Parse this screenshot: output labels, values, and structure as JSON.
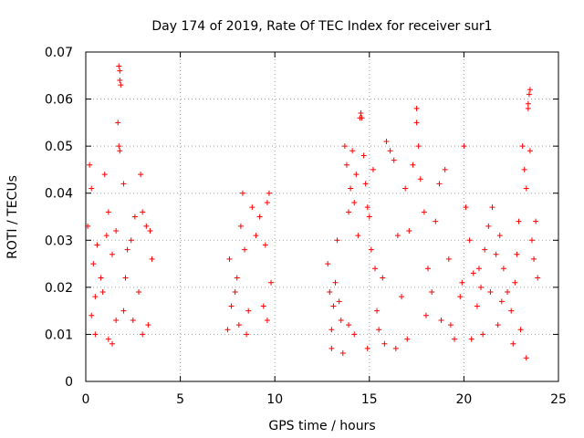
{
  "chart_data": {
    "type": "scatter",
    "title": "Day 174 of 2019, Rate Of TEC Index for receiver sur1",
    "xlabel": "GPS time / hours",
    "ylabel": "ROTI / TECUs",
    "xlim": [
      0,
      25
    ],
    "ylim": [
      0,
      0.07
    ],
    "x_ticks": [
      "0",
      "5",
      "10",
      "15",
      "20",
      "25"
    ],
    "y_ticks": [
      "0",
      "0.01",
      "0.02",
      "0.03",
      "0.04",
      "0.05",
      "0.06",
      "0.07"
    ],
    "grid": true,
    "marker": "+",
    "color": "#ff0000",
    "series": [
      {
        "name": "sur1",
        "points": [
          [
            0.1,
            0.033
          ],
          [
            0.2,
            0.046
          ],
          [
            0.3,
            0.041
          ],
          [
            0.4,
            0.025
          ],
          [
            0.5,
            0.018
          ],
          [
            0.6,
            0.029
          ],
          [
            0.8,
            0.022
          ],
          [
            1.0,
            0.044
          ],
          [
            1.1,
            0.031
          ],
          [
            1.2,
            0.036
          ],
          [
            1.4,
            0.027
          ],
          [
            1.6,
            0.032
          ],
          [
            1.75,
            0.067
          ],
          [
            1.8,
            0.066
          ],
          [
            1.8,
            0.064
          ],
          [
            1.85,
            0.063
          ],
          [
            1.7,
            0.055
          ],
          [
            1.75,
            0.05
          ],
          [
            1.8,
            0.049
          ],
          [
            2.0,
            0.042
          ],
          [
            2.2,
            0.028
          ],
          [
            2.4,
            0.03
          ],
          [
            2.6,
            0.035
          ],
          [
            2.9,
            0.044
          ],
          [
            3.0,
            0.036
          ],
          [
            3.2,
            0.033
          ],
          [
            3.4,
            0.032
          ],
          [
            3.5,
            0.026
          ],
          [
            0.3,
            0.014
          ],
          [
            0.5,
            0.01
          ],
          [
            1.2,
            0.009
          ],
          [
            1.4,
            0.008
          ],
          [
            1.6,
            0.013
          ],
          [
            2.0,
            0.015
          ],
          [
            2.5,
            0.013
          ],
          [
            3.0,
            0.01
          ],
          [
            3.3,
            0.012
          ],
          [
            2.8,
            0.019
          ],
          [
            0.9,
            0.019
          ],
          [
            2.1,
            0.022
          ],
          [
            7.5,
            0.011
          ],
          [
            7.7,
            0.016
          ],
          [
            7.9,
            0.019
          ],
          [
            8.0,
            0.022
          ],
          [
            8.2,
            0.033
          ],
          [
            8.3,
            0.04
          ],
          [
            8.4,
            0.028
          ],
          [
            8.6,
            0.015
          ],
          [
            7.6,
            0.026
          ],
          [
            8.1,
            0.012
          ],
          [
            8.5,
            0.01
          ],
          [
            8.8,
            0.037
          ],
          [
            9.0,
            0.031
          ],
          [
            9.2,
            0.035
          ],
          [
            9.5,
            0.029
          ],
          [
            9.6,
            0.038
          ],
          [
            9.7,
            0.04
          ],
          [
            9.8,
            0.021
          ],
          [
            9.6,
            0.013
          ],
          [
            9.4,
            0.016
          ],
          [
            12.8,
            0.025
          ],
          [
            12.9,
            0.019
          ],
          [
            13.0,
            0.011
          ],
          [
            13.0,
            0.007
          ],
          [
            13.1,
            0.016
          ],
          [
            13.2,
            0.021
          ],
          [
            13.3,
            0.03
          ],
          [
            13.4,
            0.017
          ],
          [
            13.5,
            0.013
          ],
          [
            13.6,
            0.006
          ],
          [
            13.7,
            0.05
          ],
          [
            13.8,
            0.046
          ],
          [
            13.9,
            0.036
          ],
          [
            14.0,
            0.041
          ],
          [
            14.1,
            0.049
          ],
          [
            14.2,
            0.038
          ],
          [
            14.3,
            0.044
          ],
          [
            14.4,
            0.031
          ],
          [
            14.5,
            0.056
          ],
          [
            14.55,
            0.057
          ],
          [
            14.6,
            0.056
          ],
          [
            14.7,
            0.048
          ],
          [
            14.8,
            0.042
          ],
          [
            14.9,
            0.037
          ],
          [
            15.0,
            0.035
          ],
          [
            15.1,
            0.028
          ],
          [
            15.2,
            0.045
          ],
          [
            15.3,
            0.024
          ],
          [
            15.4,
            0.015
          ],
          [
            15.5,
            0.011
          ],
          [
            15.7,
            0.022
          ],
          [
            15.9,
            0.051
          ],
          [
            16.1,
            0.049
          ],
          [
            16.3,
            0.047
          ],
          [
            16.5,
            0.031
          ],
          [
            16.7,
            0.018
          ],
          [
            16.9,
            0.041
          ],
          [
            17.1,
            0.032
          ],
          [
            17.3,
            0.046
          ],
          [
            17.5,
            0.058
          ],
          [
            17.5,
            0.055
          ],
          [
            17.6,
            0.05
          ],
          [
            17.7,
            0.043
          ],
          [
            17.9,
            0.036
          ],
          [
            18.1,
            0.024
          ],
          [
            18.3,
            0.019
          ],
          [
            18.5,
            0.034
          ],
          [
            18.7,
            0.042
          ],
          [
            19.0,
            0.045
          ],
          [
            19.2,
            0.026
          ],
          [
            19.3,
            0.012
          ],
          [
            19.5,
            0.009
          ],
          [
            17.0,
            0.009
          ],
          [
            16.4,
            0.007
          ],
          [
            15.8,
            0.008
          ],
          [
            14.9,
            0.007
          ],
          [
            14.2,
            0.01
          ],
          [
            13.9,
            0.012
          ],
          [
            18.0,
            0.014
          ],
          [
            18.8,
            0.013
          ],
          [
            20.0,
            0.05
          ],
          [
            20.1,
            0.037
          ],
          [
            20.3,
            0.03
          ],
          [
            20.5,
            0.023
          ],
          [
            20.7,
            0.016
          ],
          [
            20.9,
            0.02
          ],
          [
            21.1,
            0.028
          ],
          [
            21.3,
            0.033
          ],
          [
            21.5,
            0.037
          ],
          [
            21.7,
            0.027
          ],
          [
            21.9,
            0.031
          ],
          [
            22.1,
            0.024
          ],
          [
            22.3,
            0.019
          ],
          [
            22.5,
            0.015
          ],
          [
            22.7,
            0.021
          ],
          [
            22.9,
            0.034
          ],
          [
            23.1,
            0.05
          ],
          [
            23.2,
            0.045
          ],
          [
            23.3,
            0.041
          ],
          [
            23.4,
            0.059
          ],
          [
            23.45,
            0.061
          ],
          [
            23.5,
            0.062
          ],
          [
            23.4,
            0.058
          ],
          [
            23.5,
            0.049
          ],
          [
            23.6,
            0.03
          ],
          [
            23.7,
            0.026
          ],
          [
            23.8,
            0.034
          ],
          [
            23.9,
            0.022
          ],
          [
            23.3,
            0.005
          ],
          [
            21.0,
            0.01
          ],
          [
            21.8,
            0.012
          ],
          [
            22.6,
            0.008
          ],
          [
            23.0,
            0.011
          ],
          [
            20.4,
            0.009
          ],
          [
            19.8,
            0.018
          ],
          [
            22.0,
            0.017
          ],
          [
            20.8,
            0.024
          ],
          [
            22.8,
            0.027
          ],
          [
            19.9,
            0.021
          ],
          [
            21.4,
            0.019
          ]
        ]
      }
    ]
  }
}
